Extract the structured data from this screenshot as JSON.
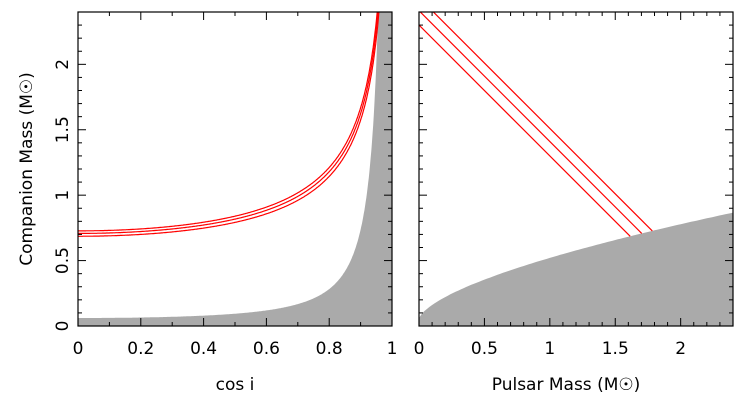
{
  "chart_data": [
    {
      "type": "area",
      "xlabel": "cos i",
      "ylabel": "Companion Mass (M☉)",
      "xlim": [
        0,
        1
      ],
      "ylim": [
        0,
        2.4
      ],
      "x_ticks": [
        "0",
        "0.2",
        "0.4",
        "0.6",
        "0.8",
        "1"
      ],
      "y_ticks": [
        "0",
        "0.5",
        "1",
        "1.5",
        "2"
      ],
      "x_major_step": 0.2,
      "x_minor_step": 0.1,
      "y_major_step": 0.5,
      "y_minor_step": 0.1,
      "mass_function": 0.061,
      "total_masses": [
        2.3,
        2.41,
        2.51
      ],
      "excluded_region_color": "#aaaaaa",
      "curve_color": "#ff0000",
      "grid": false
    },
    {
      "type": "area",
      "xlabel": "Pulsar Mass (M☉)",
      "ylabel": "",
      "xlim": [
        0,
        2.4
      ],
      "ylim": [
        0,
        2.4
      ],
      "x_ticks": [
        "0",
        "0.5",
        "1",
        "1.5",
        "2"
      ],
      "y_ticks": [],
      "x_major_step": 0.5,
      "x_minor_step": 0.1,
      "y_major_step": 0.5,
      "y_minor_step": 0.1,
      "mass_function": 0.061,
      "total_masses": [
        2.3,
        2.41,
        2.51
      ],
      "excluded_region_color": "#aaaaaa",
      "curve_color": "#ff0000",
      "grid": false
    }
  ]
}
